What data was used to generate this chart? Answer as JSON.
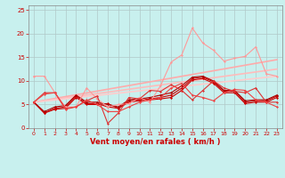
{
  "title": "",
  "xlabel": "Vent moyen/en rafales ( km/h )",
  "ylabel": "",
  "xlim": [
    -0.5,
    23.5
  ],
  "ylim": [
    0,
    26
  ],
  "yticks": [
    0,
    5,
    10,
    15,
    20,
    25
  ],
  "xticks": [
    0,
    1,
    2,
    3,
    4,
    5,
    6,
    7,
    8,
    9,
    10,
    11,
    12,
    13,
    14,
    15,
    16,
    17,
    18,
    19,
    20,
    21,
    22,
    23
  ],
  "bg_color": "#c8f0ee",
  "grid_color": "#b0c8c8",
  "series": [
    {
      "x": [
        0,
        1,
        2,
        3,
        4,
        5,
        6,
        7,
        8,
        9,
        10,
        11,
        12,
        13,
        14,
        15,
        16,
        17,
        18,
        19,
        20,
        21,
        22,
        23
      ],
      "y": [
        5.5,
        3.2,
        4.0,
        4.2,
        6.5,
        5.0,
        5.0,
        5.2,
        4.2,
        5.5,
        5.8,
        6.0,
        6.2,
        6.5,
        8.0,
        10.2,
        10.5,
        9.5,
        7.5,
        7.5,
        5.2,
        5.5,
        5.5,
        6.5
      ],
      "color": "#cc0000",
      "lw": 0.8,
      "marker": "D",
      "ms": 1.5
    },
    {
      "x": [
        0,
        1,
        2,
        3,
        4,
        5,
        6,
        7,
        8,
        9,
        10,
        11,
        12,
        13,
        14,
        15,
        16,
        17,
        18,
        19,
        20,
        21,
        22,
        23
      ],
      "y": [
        5.5,
        3.2,
        4.2,
        4.5,
        6.8,
        5.2,
        5.2,
        4.5,
        4.2,
        5.8,
        6.0,
        6.2,
        6.5,
        7.0,
        8.5,
        10.5,
        10.8,
        9.8,
        7.8,
        7.8,
        5.5,
        5.8,
        5.8,
        6.8
      ],
      "color": "#cc0000",
      "lw": 0.8,
      "marker": "D",
      "ms": 1.5
    },
    {
      "x": [
        0,
        1,
        2,
        3,
        4,
        5,
        6,
        7,
        8,
        9,
        10,
        11,
        12,
        13,
        14,
        15,
        16,
        17,
        18,
        19,
        20,
        21,
        22,
        23
      ],
      "y": [
        5.5,
        3.5,
        4.5,
        4.8,
        7.0,
        5.5,
        5.5,
        5.0,
        4.5,
        6.0,
        6.2,
        6.5,
        7.0,
        7.5,
        9.0,
        10.8,
        11.0,
        10.0,
        8.0,
        8.0,
        5.8,
        6.0,
        6.0,
        7.0
      ],
      "color": "#aa0000",
      "lw": 0.8,
      "marker": "D",
      "ms": 1.5
    },
    {
      "x": [
        0,
        1,
        2,
        3,
        4,
        5,
        6,
        7,
        8,
        9,
        10,
        11,
        12,
        13,
        14,
        15,
        16,
        17,
        18,
        19,
        20,
        21,
        22,
        23
      ],
      "y": [
        11.0,
        11.0,
        7.5,
        4.5,
        4.5,
        8.5,
        6.2,
        4.5,
        5.0,
        5.2,
        6.5,
        5.5,
        9.0,
        14.0,
        15.5,
        21.2,
        18.0,
        16.5,
        14.2,
        14.8,
        15.2,
        17.2,
        11.5,
        11.0
      ],
      "color": "#ff9999",
      "lw": 0.8,
      "marker": "D",
      "ms": 1.5
    },
    {
      "x": [
        0,
        1,
        2,
        3,
        4,
        5,
        6,
        7,
        8,
        9,
        10,
        11,
        12,
        13,
        14,
        15,
        16,
        17,
        18,
        19,
        20,
        21,
        22,
        23
      ],
      "y": [
        5.5,
        7.5,
        7.5,
        4.2,
        4.5,
        5.8,
        6.8,
        1.0,
        3.2,
        6.5,
        6.2,
        8.0,
        7.8,
        9.2,
        8.0,
        6.0,
        8.0,
        10.0,
        8.5,
        7.8,
        7.5,
        8.5,
        5.5,
        5.5
      ],
      "color": "#dd3333",
      "lw": 0.8,
      "marker": "D",
      "ms": 1.5
    },
    {
      "x": [
        0,
        1,
        2,
        3,
        4,
        5,
        6,
        7,
        8,
        9,
        10,
        11,
        12,
        13,
        14,
        15,
        16,
        17,
        18,
        19,
        20,
        21,
        22,
        23
      ],
      "y": [
        5.5,
        7.2,
        7.5,
        4.0,
        4.5,
        6.0,
        5.0,
        3.5,
        3.5,
        4.5,
        5.5,
        6.0,
        6.5,
        8.5,
        9.5,
        7.0,
        6.5,
        5.8,
        7.5,
        8.2,
        8.0,
        6.0,
        5.5,
        4.5
      ],
      "color": "#ee4444",
      "lw": 0.8,
      "marker": "D",
      "ms": 1.5
    },
    {
      "x": [
        0,
        23
      ],
      "y": [
        5.5,
        14.5
      ],
      "color": "#ffaaaa",
      "lw": 1.2,
      "marker": null,
      "ms": 0
    },
    {
      "x": [
        0,
        23
      ],
      "y": [
        5.5,
        12.5
      ],
      "color": "#ffbbbb",
      "lw": 1.2,
      "marker": null,
      "ms": 0
    },
    {
      "x": [
        0,
        23
      ],
      "y": [
        5.5,
        11.0
      ],
      "color": "#ffcccc",
      "lw": 1.2,
      "marker": null,
      "ms": 0
    }
  ],
  "wind_dirs": [
    "→",
    "→",
    "→",
    "↗",
    "↗",
    "↗",
    "↑",
    "↑",
    "↑",
    "↑",
    "↗",
    "↗",
    "↗",
    "↗",
    "↗",
    "↗",
    "↗",
    "↗",
    "→",
    "→",
    "→",
    "→",
    "→",
    "↗"
  ],
  "tick_color": "#cc0000",
  "label_color": "#cc0000",
  "xlabel_fontsize": 6,
  "tick_fontsize": 4.5
}
